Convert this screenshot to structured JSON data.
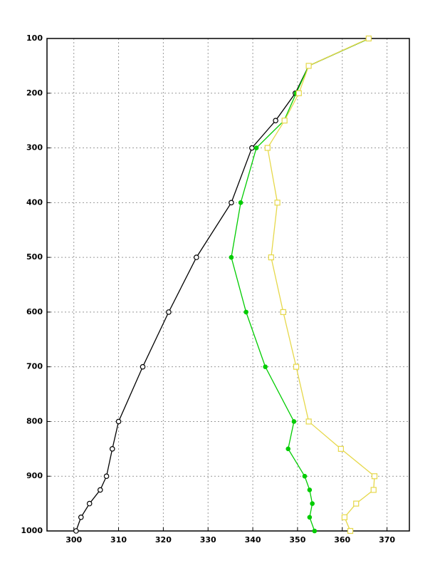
{
  "chart_data": {
    "type": "profile",
    "y": [
      100,
      150,
      200,
      250,
      300,
      400,
      500,
      600,
      700,
      800,
      850,
      900,
      925,
      950,
      975,
      1000
    ],
    "series": [
      {
        "color": "#000000",
        "marker": "circle",
        "values": [
          366,
          352.5,
          349.5,
          345.1,
          339.8,
          335.2,
          327.4,
          321.2,
          315.4,
          310.0,
          308.6,
          307.3,
          305.9,
          303.5,
          301.6,
          300.5
        ]
      },
      {
        "color": "#00cc00",
        "marker": "dot",
        "values": [
          366,
          352.5,
          349.7,
          347.0,
          340.8,
          337.3,
          335.2,
          338.5,
          342.8,
          349.2,
          347.9,
          351.6,
          352.7,
          353.3,
          352.7,
          353.8
        ]
      },
      {
        "color": "#e6d84a",
        "marker": "square",
        "values": [
          365.9,
          352.5,
          350.3,
          347.1,
          343.3,
          345.5,
          344.1,
          346.8,
          349.7,
          352.5,
          359.7,
          367.2,
          367.0,
          363.1,
          360.5,
          361.8
        ]
      }
    ],
    "xlim": [
      294,
      375
    ],
    "xticks": [
      300,
      310,
      320,
      330,
      340,
      350,
      360,
      370
    ],
    "ylim": [
      100,
      1000
    ],
    "yticks": [
      100,
      200,
      300,
      400,
      500,
      600,
      700,
      800,
      900,
      1000
    ],
    "y_inverted": true,
    "grid": true
  }
}
